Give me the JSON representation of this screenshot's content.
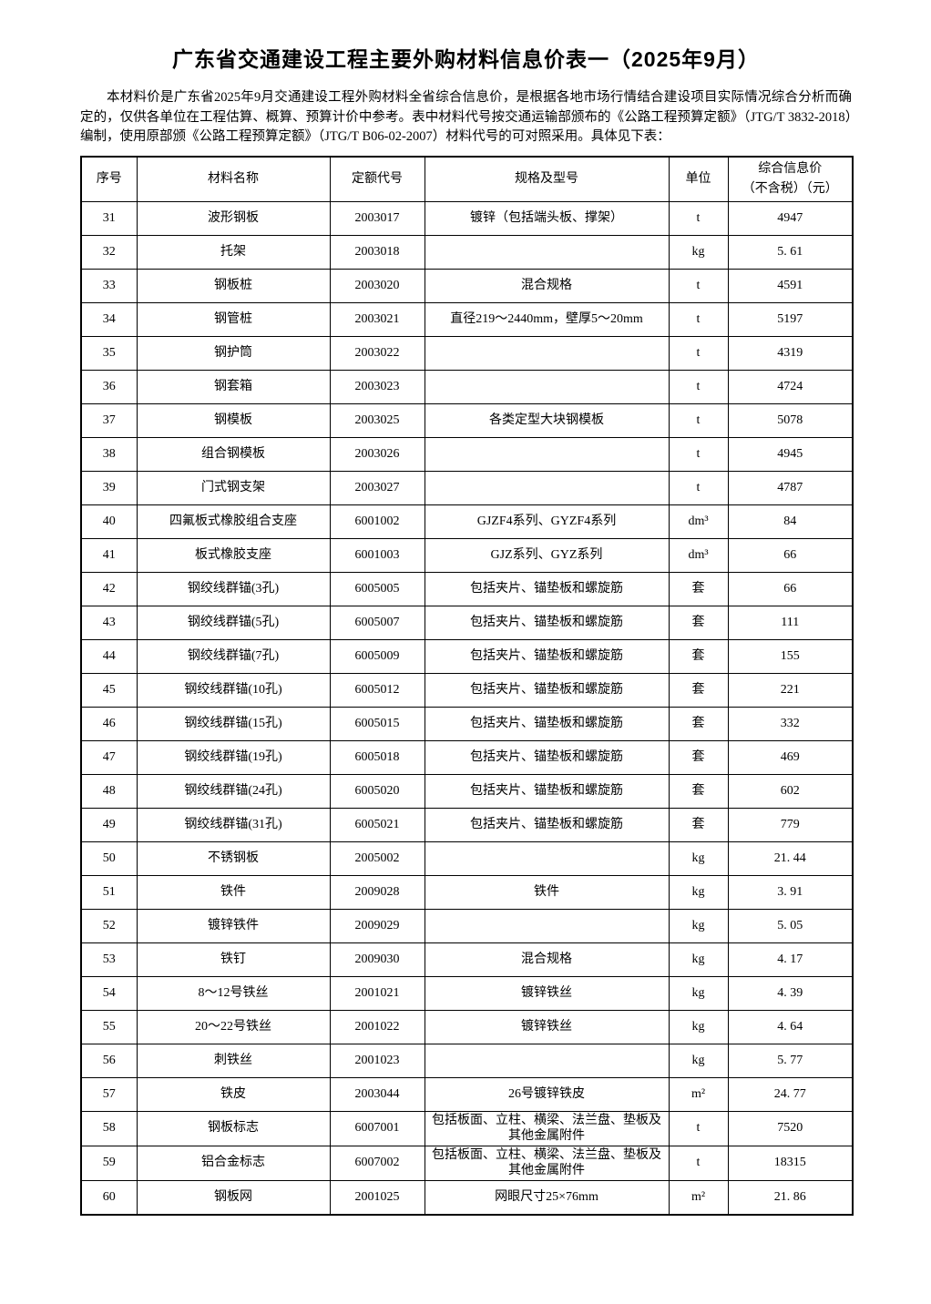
{
  "page": {
    "title": "广东省交通建设工程主要外购材料信息价表一（2025年9月）",
    "intro": "本材料价是广东省2025年9月交通建设工程外购材料全省综合信息价，是根据各地市场行情结合建设项目实际情况综合分析而确定的，仅供各单位在工程估算、概算、预算计价中参考。表中材料代号按交通运输部颁布的《公路工程预算定额》（JTG/T 3832-2018）编制，使用原部颁《公路工程预算定额》（JTG/T B06-02-2007）材料代号的可对照采用。具体见下表："
  },
  "table": {
    "columns": [
      {
        "label": "序号"
      },
      {
        "label": "材料名称"
      },
      {
        "label": "定额代号"
      },
      {
        "label": "规格及型号"
      },
      {
        "label": "单位"
      },
      {
        "label": "综合信息价",
        "label2": "（不含税）（元）"
      }
    ],
    "rows": [
      [
        "31",
        "波形钢板",
        "2003017",
        "镀锌（包括端头板、撑架）",
        "t",
        "4947"
      ],
      [
        "32",
        "托架",
        "2003018",
        "",
        "kg",
        "5. 61"
      ],
      [
        "33",
        "钢板桩",
        "2003020",
        "混合规格",
        "t",
        "4591"
      ],
      [
        "34",
        "钢管桩",
        "2003021",
        "直径219～2440mm，壁厚5～20mm",
        "t",
        "5197"
      ],
      [
        "35",
        "钢护筒",
        "2003022",
        "",
        "t",
        "4319"
      ],
      [
        "36",
        "钢套箱",
        "2003023",
        "",
        "t",
        "4724"
      ],
      [
        "37",
        "钢模板",
        "2003025",
        "各类定型大块钢模板",
        "t",
        "5078"
      ],
      [
        "38",
        "组合钢模板",
        "2003026",
        "",
        "t",
        "4945"
      ],
      [
        "39",
        "门式钢支架",
        "2003027",
        "",
        "t",
        "4787"
      ],
      [
        "40",
        "四氟板式橡胶组合支座",
        "6001002",
        "GJZF4系列、GYZF4系列",
        "dm³",
        "84"
      ],
      [
        "41",
        "板式橡胶支座",
        "6001003",
        "GJZ系列、GYZ系列",
        "dm³",
        "66"
      ],
      [
        "42",
        "钢绞线群锚(3孔)",
        "6005005",
        "包括夹片、锚垫板和螺旋筋",
        "套",
        "66"
      ],
      [
        "43",
        "钢绞线群锚(5孔)",
        "6005007",
        "包括夹片、锚垫板和螺旋筋",
        "套",
        "111"
      ],
      [
        "44",
        "钢绞线群锚(7孔)",
        "6005009",
        "包括夹片、锚垫板和螺旋筋",
        "套",
        "155"
      ],
      [
        "45",
        "钢绞线群锚(10孔)",
        "6005012",
        "包括夹片、锚垫板和螺旋筋",
        "套",
        "221"
      ],
      [
        "46",
        "钢绞线群锚(15孔)",
        "6005015",
        "包括夹片、锚垫板和螺旋筋",
        "套",
        "332"
      ],
      [
        "47",
        "钢绞线群锚(19孔)",
        "6005018",
        "包括夹片、锚垫板和螺旋筋",
        "套",
        "469"
      ],
      [
        "48",
        "钢绞线群锚(24孔)",
        "6005020",
        "包括夹片、锚垫板和螺旋筋",
        "套",
        "602"
      ],
      [
        "49",
        "钢绞线群锚(31孔)",
        "6005021",
        "包括夹片、锚垫板和螺旋筋",
        "套",
        "779"
      ],
      [
        "50",
        "不锈钢板",
        "2005002",
        "",
        "kg",
        "21. 44"
      ],
      [
        "51",
        "铁件",
        "2009028",
        "铁件",
        "kg",
        "3. 91"
      ],
      [
        "52",
        "镀锌铁件",
        "2009029",
        "",
        "kg",
        "5. 05"
      ],
      [
        "53",
        "铁钉",
        "2009030",
        "混合规格",
        "kg",
        "4. 17"
      ],
      [
        "54",
        "8～12号铁丝",
        "2001021",
        "镀锌铁丝",
        "kg",
        "4. 39"
      ],
      [
        "55",
        "20～22号铁丝",
        "2001022",
        "镀锌铁丝",
        "kg",
        "4. 64"
      ],
      [
        "56",
        "刺铁丝",
        "2001023",
        "",
        "kg",
        "5. 77"
      ],
      [
        "57",
        "铁皮",
        "2003044",
        "26号镀锌铁皮",
        "m²",
        "24. 77"
      ],
      [
        "58",
        "钢板标志",
        "6007001",
        "包括板面、立柱、横梁、法兰盘、垫板及其他金属附件",
        "t",
        "7520"
      ],
      [
        "59",
        "铝合金标志",
        "6007002",
        "包括板面、立柱、横梁、法兰盘、垫板及其他金属附件",
        "t",
        "18315"
      ],
      [
        "60",
        "钢板网",
        "2001025",
        "网眼尺寸25×76mm",
        "m²",
        "21. 86"
      ]
    ]
  },
  "colors": {
    "text": "#000000",
    "background": "#ffffff",
    "border": "#000000"
  }
}
